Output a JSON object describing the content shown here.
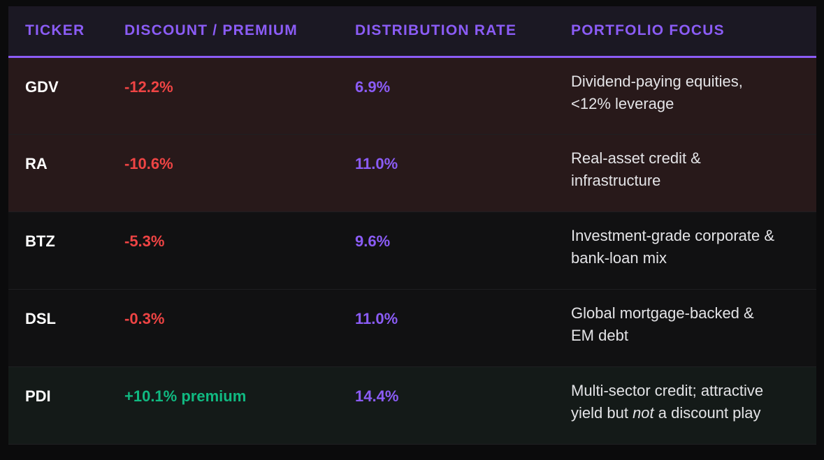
{
  "table": {
    "headers": [
      "TICKER",
      "DISCOUNT / PREMIUM",
      "DISTRIBUTION RATE",
      "PORTFOLIO FOCUS"
    ],
    "rows": [
      {
        "ticker": "GDV",
        "discount": "-12.2%",
        "distribution": "6.9%",
        "focus_line1": "Dividend-paying equities,",
        "focus_line2": "<12% leverage"
      },
      {
        "ticker": "RA",
        "discount": "-10.6%",
        "distribution": "11.0%",
        "focus_line1": "Real-asset credit &",
        "focus_line2": "infrastructure"
      },
      {
        "ticker": "BTZ",
        "discount": "-5.3%",
        "distribution": "9.6%",
        "focus_line1": "Investment-grade corporate &",
        "focus_line2": "bank-loan mix"
      },
      {
        "ticker": "DSL",
        "discount": "-0.3%",
        "distribution": "11.0%",
        "focus_line1": "Global mortgage-backed &",
        "focus_line2": "EM debt"
      },
      {
        "ticker": "PDI",
        "discount": "+10.1% premium",
        "distribution": "14.4%",
        "focus_line1": "Multi-sector credit; attractive",
        "focus_line2_pre": "yield but ",
        "focus_line2_em": "not",
        "focus_line2_post": " a discount play"
      }
    ]
  },
  "colors": {
    "accent": "#8b5cf6",
    "negative": "#ef4444",
    "positive": "#10b981"
  }
}
